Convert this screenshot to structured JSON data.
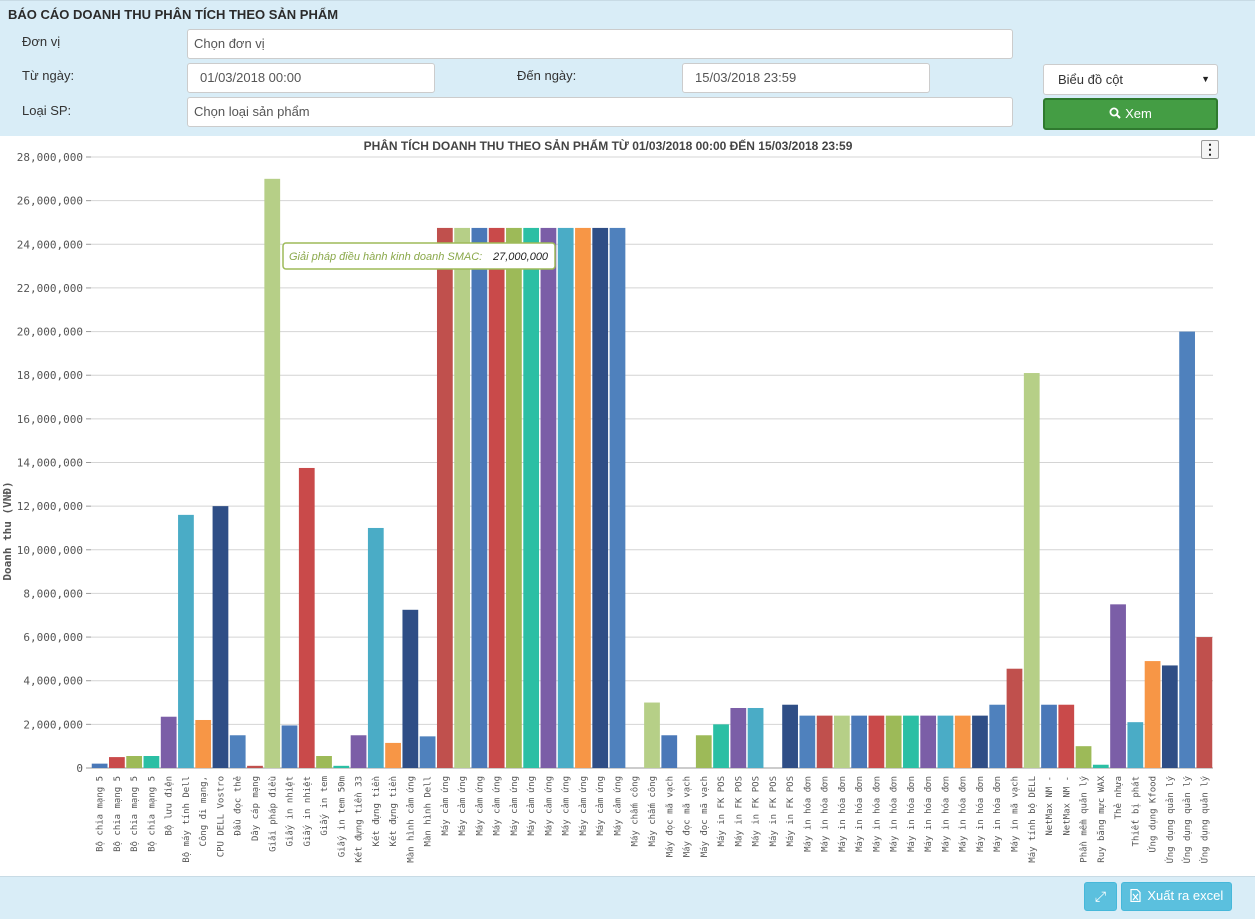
{
  "header": {
    "title": "BÁO CÁO DOANH THU PHÂN TÍCH THEO SẢN PHẨM",
    "unit_label": "Đơn vị",
    "unit_placeholder": "Chọn đơn vị",
    "from_label": "Từ ngày:",
    "from_value": "01/03/2018 00:00",
    "to_label": "Đến ngày:",
    "to_value": "15/03/2018 23:59",
    "type_label": "Loại SP:",
    "type_placeholder": "Chọn loại sản phẩm",
    "chart_type_selected": "Biểu đồ cột",
    "view_button": "Xem"
  },
  "footer": {
    "excel_button": "Xuất ra excel"
  },
  "icons": {
    "view": "search-icon",
    "expand": "expand-icon",
    "excel": "excel-file-icon",
    "menu": "vertical-dots-icon"
  },
  "tooltip": {
    "label": "Giải pháp điều hành kinh doanh SMAC:",
    "value": "27,000,000"
  },
  "chart_data": {
    "type": "bar",
    "title": "PHÂN TÍCH DOANH THU THEO SẢN PHẨM TỪ 01/03/2018 00:00 ĐẾN 15/03/2018 23:59",
    "ylabel": "Doanh thu (VNĐ)",
    "xlabel": "",
    "ylim": [
      0,
      28000000
    ],
    "ytick_step": 2000000,
    "grid": true,
    "categories": [
      "Bộ chia mạng 5",
      "Bộ chia mạng 5",
      "Bộ chia mạng 5",
      "Bộ chia mạng 5",
      "Bộ lưu điện",
      "Bộ máy tính Dell",
      "Công đi mạng,",
      "CPU DELL Vostro",
      "Đầu đọc thẻ",
      "Dây cáp mạng",
      "Giải pháp điều",
      "Giấy in nhiệt",
      "Giấy in nhiệt",
      "Giấy in tem",
      "Giấy in tem 50m",
      "Két đựng tiền 33",
      "Két đựng tiền",
      "Két đựng tiền",
      "Màn hình cảm ứng",
      "Màn hình Dell",
      "Máy cảm ứng",
      "Máy cảm ứng",
      "Máy cảm ứng",
      "Máy cảm ứng",
      "Máy cảm ứng",
      "Máy cảm ứng",
      "Máy cảm ứng",
      "Máy cảm ứng",
      "Máy cảm ứng",
      "Máy cảm ứng",
      "Máy cảm ứng",
      "Máy chấm công",
      "Máy chấm công",
      "Máy đọc mã vạch",
      "Máy đọc mã vạch",
      "Máy đọc mã vạch",
      "Máy in FK POS",
      "Máy in FK POS",
      "Máy in FK POS",
      "Máy in FK POS",
      "Máy in FK POS",
      "Máy in hóa đơn",
      "Máy in hóa đơn",
      "Máy in hóa đơn",
      "Máy in hóa đơn",
      "Máy in hóa đơn",
      "Máy in hóa đơn",
      "Máy in hóa đơn",
      "Máy in hóa đơn",
      "Máy in hóa đơn",
      "Máy in hóa đơn",
      "Máy in hóa đơn",
      "Máy in hóa đơn",
      "Máy in mã vạch",
      "Máy tính bộ DELL",
      "NetMax NM -",
      "NetMax NM -",
      "Phần mềm quản lý",
      "Ruy băng mực WAX",
      "Thẻ nhựa",
      "Thiết bị phát",
      "Ứng dụng Kfood",
      "Ứng dụng quản lý",
      "Ứng dụng quản lý",
      "Ứng dụng quản lý"
    ],
    "values": [
      200000,
      500000,
      550000,
      550000,
      2350000,
      11600000,
      2200000,
      12000000,
      1500000,
      100000,
      27000000,
      1950000,
      13750000,
      550000,
      100000,
      1500000,
      11000000,
      1150000,
      7250000,
      1450000,
      24750000,
      24750000,
      24750000,
      24750000,
      24750000,
      24750000,
      24750000,
      24750000,
      24750000,
      24750000,
      24750000,
      0,
      3000000,
      1500000,
      0,
      1500000,
      2000000,
      2750000,
      2750000,
      0,
      2900000,
      2400000,
      2400000,
      2400000,
      2400000,
      2400000,
      2400000,
      2400000,
      2400000,
      2400000,
      2400000,
      2400000,
      2900000,
      4550000,
      18100000,
      2900000,
      2900000,
      1000000,
      150000,
      7500000,
      2100000,
      4900000,
      4700000,
      20000000,
      6000000
    ],
    "colors": [
      "#4a78b8",
      "#c94a4a",
      "#9dba58",
      "#2bbfa4",
      "#7b5ea7",
      "#4aacc6",
      "#f79646",
      "#2f4e86",
      "#4f81bd",
      "#c0504d",
      "#b6cf87"
    ]
  }
}
